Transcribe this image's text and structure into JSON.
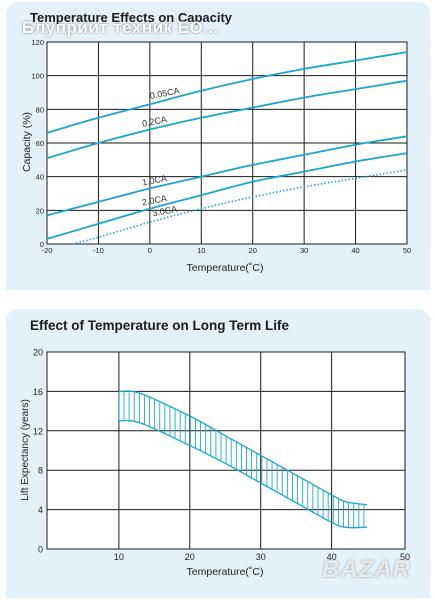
{
  "overlay_text": "Блуприит техник ЕО...",
  "watermark": "BAZAR",
  "chart_data": [
    {
      "type": "line",
      "title": "Temperature Effects on Capacity",
      "xlabel": "Temperature(˚C)",
      "ylabel": "Capacity (%)",
      "xlim": [
        -20,
        50
      ],
      "ylim": [
        0,
        120
      ],
      "xticks": [
        -20,
        -10,
        0,
        10,
        20,
        30,
        40,
        50
      ],
      "yticks": [
        0,
        20,
        40,
        60,
        80,
        100,
        120
      ],
      "grid": true,
      "series": [
        {
          "name": "0.05CA",
          "x": [
            -20,
            -10,
            0,
            10,
            20,
            30,
            40,
            50
          ],
          "values": [
            66,
            75,
            83,
            91,
            98,
            104,
            109,
            114
          ],
          "style": "solid"
        },
        {
          "name": "0.2CA",
          "x": [
            -20,
            -10,
            0,
            10,
            20,
            30,
            40,
            50
          ],
          "values": [
            51,
            60,
            68,
            75,
            81,
            87,
            92,
            97
          ],
          "style": "solid"
        },
        {
          "name": "1.0CA",
          "x": [
            -20,
            -10,
            0,
            10,
            20,
            30,
            40,
            50
          ],
          "values": [
            17,
            25,
            33,
            40,
            47,
            53,
            59,
            64
          ],
          "style": "solid"
        },
        {
          "name": "2.0CA",
          "x": [
            -20,
            -10,
            0,
            10,
            20,
            30,
            40,
            50
          ],
          "values": [
            3,
            12,
            21,
            29,
            37,
            43,
            49,
            54
          ],
          "style": "solid"
        },
        {
          "name": "3.0CA",
          "x": [
            -15,
            -10,
            0,
            10,
            20,
            30,
            40,
            50
          ],
          "values": [
            0,
            4,
            13,
            21,
            28,
            34,
            39,
            44
          ],
          "style": "dotted"
        }
      ]
    },
    {
      "type": "area",
      "title": "Effect of Temperature on Long Term Life",
      "xlabel": "Temperature(˚C)",
      "ylabel": "Lift Expectancy (years)",
      "xlim": [
        0,
        40
      ],
      "ylim": [
        0,
        20
      ],
      "xticks": [
        10,
        20,
        30,
        40,
        50
      ],
      "xtick_labels": [
        "10",
        "20",
        "30",
        "40",
        "50"
      ],
      "yticks": [
        0,
        4,
        8,
        12,
        16,
        20
      ],
      "grid": true,
      "series": [
        {
          "name": "upper",
          "x": [
            10,
            13,
            20,
            25,
            30,
            35,
            40,
            42,
            45
          ],
          "values": [
            16,
            15.8,
            13.5,
            11.5,
            9.5,
            7.5,
            5.5,
            4.8,
            4.5
          ]
        },
        {
          "name": "lower",
          "x": [
            10,
            13,
            20,
            25,
            30,
            35,
            40,
            42,
            45
          ],
          "values": [
            13,
            12.8,
            10.5,
            8.7,
            6.7,
            4.7,
            2.7,
            2.2,
            2.2
          ]
        }
      ]
    }
  ]
}
